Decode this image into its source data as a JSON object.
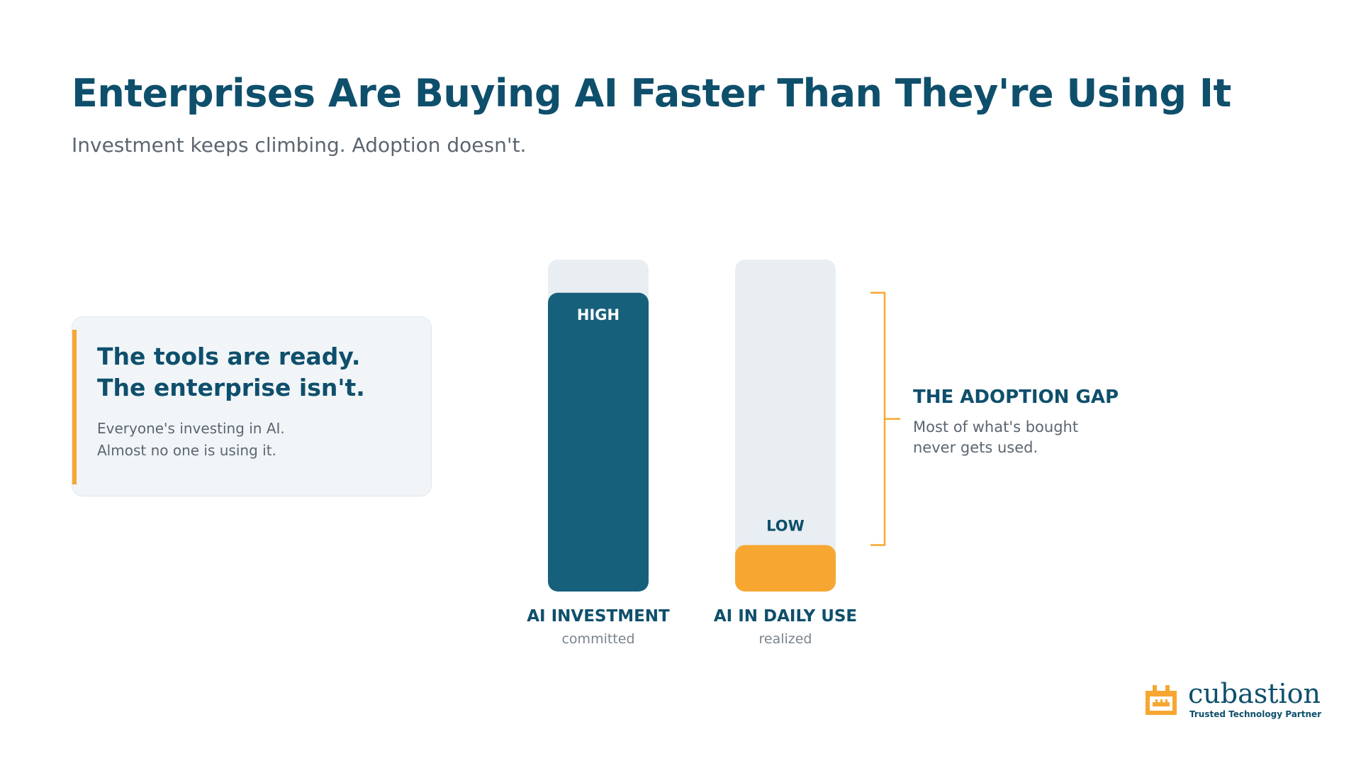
{
  "header": {
    "title": "Enterprises Are Buying AI Faster Than They're Using It",
    "subtitle": "Investment keeps climbing. Adoption doesn't."
  },
  "callout": {
    "heading_line1": "The tools are ready.",
    "heading_line2": "The enterprise isn't.",
    "body_line1": "Everyone's investing in AI.",
    "body_line2": "Almost no one is using it."
  },
  "chart_data": {
    "type": "bar",
    "categories": [
      "AI INVESTMENT",
      "AI IN DAILY USE"
    ],
    "category_sublabels": [
      "committed",
      "realized"
    ],
    "values": [
      0.9,
      0.14
    ],
    "value_labels": [
      "HIGH",
      "LOW"
    ],
    "ylim": [
      0,
      1
    ],
    "grid": false,
    "colors": [
      "#17607c",
      "#f7a731"
    ],
    "track_color": "#e8eef2",
    "annotation": {
      "title": "THE ADOPTION GAP",
      "line1": "Most of what's bought",
      "line2": "never gets used."
    }
  },
  "logo": {
    "name": "cubastion",
    "tagline": "Trusted Technology Partner",
    "accent": "#f7a731",
    "brand": "#0e4f6c"
  }
}
